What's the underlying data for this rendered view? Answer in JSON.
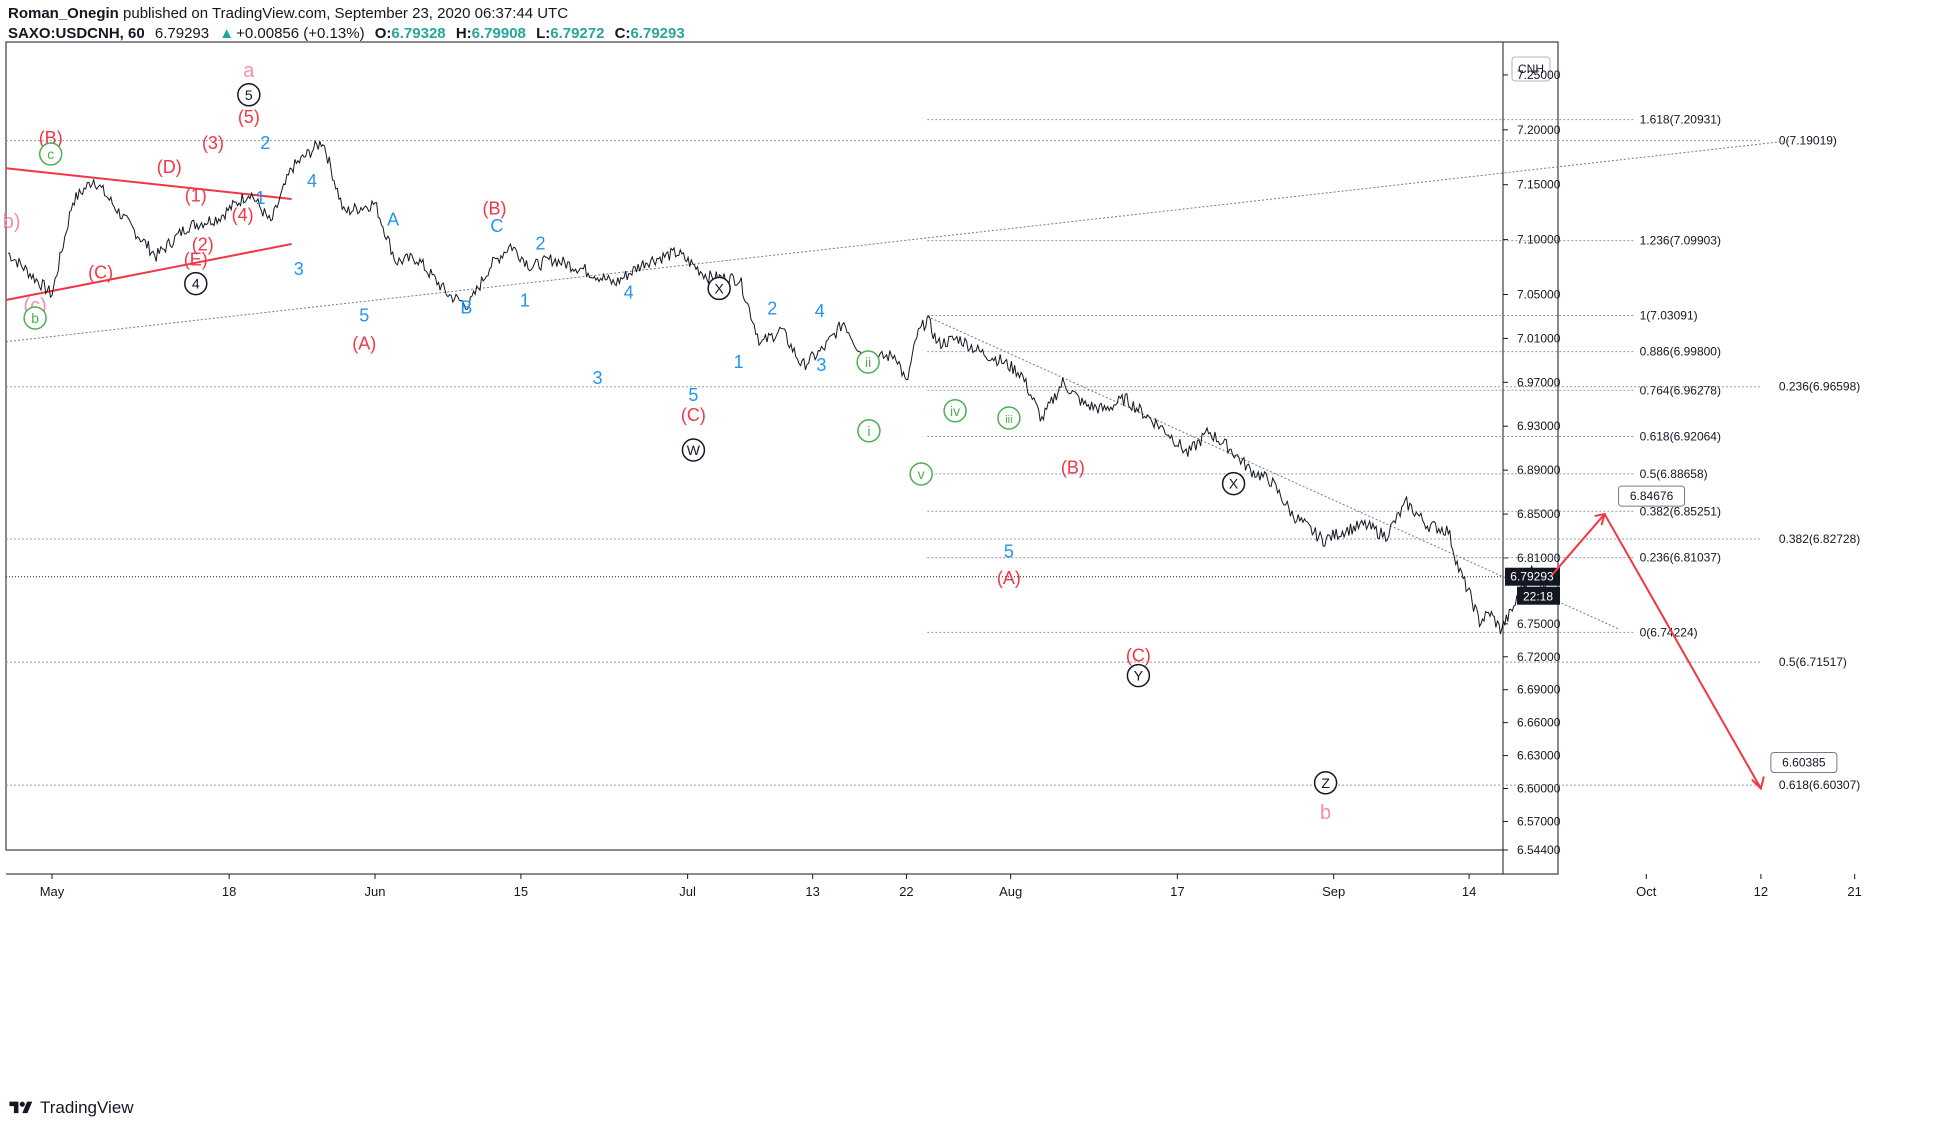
{
  "header": {
    "author": "Roman_Onegin",
    "published_text": "published on TradingView.com, September 23, 2020 06:37:44 UTC",
    "symbol": "SAXO:USDCNH, 60",
    "last": "6.79293",
    "change_arrow": "▲",
    "change": "+0.00856 (+0.13%)",
    "o_label": "O:",
    "o_value": "6.79328",
    "h_label": "H:",
    "h_value": "6.79908",
    "l_label": "L:",
    "l_value": "6.79272",
    "c_label": "C:",
    "c_value": "6.79293"
  },
  "footer": {
    "brand": "TradingView"
  },
  "colors": {
    "red": "#f23645",
    "blue": "#2196f3",
    "green": "#4caf50",
    "pink": "#f48fb1",
    "black": "#131722",
    "grid": "#9598a1",
    "green_value": "#26a69a"
  },
  "chart_data": {
    "type": "line",
    "title": "SAXO:USDCNH, 60",
    "currency_label": "CNH",
    "y_ticks": [
      "7.25000",
      "7.20000",
      "7.15000",
      "7.10000",
      "7.05000",
      "7.01000",
      "6.97000",
      "6.93000",
      "6.89000",
      "6.85000",
      "6.81000",
      "6.75000",
      "6.72000",
      "6.69000",
      "6.66000",
      "6.63000",
      "6.60000",
      "6.57000",
      "6.54400"
    ],
    "ylim": [
      6.544,
      7.28
    ],
    "x_ticks": [
      "May",
      "18",
      "Jun",
      "15",
      "Jul",
      "13",
      "22",
      "Aug",
      "17",
      "Sep",
      "14",
      "Oct",
      "12",
      "21"
    ],
    "current_price": "6.79293",
    "countdown": "22:18",
    "price_path": [
      [
        "Apr 28",
        7.088
      ],
      [
        "May 1",
        7.05
      ],
      [
        "May 3",
        7.135
      ],
      [
        "May 5",
        7.155
      ],
      [
        "May 8",
        7.118
      ],
      [
        "May 11",
        7.085
      ],
      [
        "May 14",
        7.112
      ],
      [
        "May 17",
        7.12
      ],
      [
        "May 20",
        7.143
      ],
      [
        "May 22",
        7.115
      ],
      [
        "May 24",
        7.165
      ],
      [
        "May 27",
        7.19
      ],
      [
        "May 29",
        7.125
      ],
      [
        "Jun 1",
        7.133
      ],
      [
        "Jun 3",
        7.08
      ],
      [
        "Jun 5",
        7.083
      ],
      [
        "Jun 8",
        7.05
      ],
      [
        "Jun 10",
        7.04
      ],
      [
        "Jun 12",
        7.075
      ],
      [
        "Jun 14",
        7.095
      ],
      [
        "Jun 16",
        7.075
      ],
      [
        "Jun 18",
        7.082
      ],
      [
        "Jun 21",
        7.073
      ],
      [
        "Jun 24",
        7.06
      ],
      [
        "Jun 27",
        7.08
      ],
      [
        "Jun 30",
        7.088
      ],
      [
        "Jul 3",
        7.066
      ],
      [
        "Jul 6",
        7.064
      ],
      [
        "Jul 8",
        7.005
      ],
      [
        "Jul 10",
        7.018
      ],
      [
        "Jul 12",
        6.985
      ],
      [
        "Jul 14",
        7.0
      ],
      [
        "Jul 16",
        7.025
      ],
      [
        "Jul 18",
        6.99
      ],
      [
        "Jul 21",
        6.995
      ],
      [
        "Jul 22",
        6.968
      ],
      [
        "Jul 23",
        7.012
      ],
      [
        "Jul 24",
        7.028
      ],
      [
        "Jul 25",
        7.005
      ],
      [
        "Jul 27",
        7.01
      ],
      [
        "Jul 29",
        6.998
      ],
      [
        "Jul 31",
        6.99
      ],
      [
        "Aug 2",
        6.978
      ],
      [
        "Aug 4",
        6.936
      ],
      [
        "Aug 6",
        6.97
      ],
      [
        "Aug 8",
        6.95
      ],
      [
        "Aug 10",
        6.945
      ],
      [
        "Aug 12",
        6.955
      ],
      [
        "Aug 14",
        6.94
      ],
      [
        "Aug 16",
        6.925
      ],
      [
        "Aug 18",
        6.905
      ],
      [
        "Aug 20",
        6.925
      ],
      [
        "Aug 22",
        6.91
      ],
      [
        "Aug 24",
        6.89
      ],
      [
        "Aug 26",
        6.88
      ],
      [
        "Aug 28",
        6.85
      ],
      [
        "Aug 31",
        6.826
      ],
      [
        "Sep 2",
        6.835
      ],
      [
        "Sep 4",
        6.84
      ],
      [
        "Sep 6",
        6.83
      ],
      [
        "Sep 8",
        6.86
      ],
      [
        "Sep 10",
        6.84
      ],
      [
        "Sep 12",
        6.835
      ],
      [
        "Sep 13",
        6.8
      ],
      [
        "Sep 14",
        6.778
      ],
      [
        "Sep 15",
        6.752
      ],
      [
        "Sep 16",
        6.76
      ],
      [
        "Sep 17",
        6.745
      ],
      [
        "Sep 18",
        6.76
      ],
      [
        "Sep 19",
        6.78
      ],
      [
        "Sep 20",
        6.8
      ],
      [
        "Sep 21",
        6.785
      ],
      [
        "Sep 22",
        6.793
      ]
    ],
    "fib_levels_right": [
      {
        "label": "1.618(7.20931)",
        "value": 7.20931
      },
      {
        "label": "1.236(7.09903)",
        "value": 7.09903
      },
      {
        "label": "1(7.03091)",
        "value": 7.03091
      },
      {
        "label": "0.886(6.99800)",
        "value": 6.998
      },
      {
        "label": "0.764(6.96278)",
        "value": 6.96278
      },
      {
        "label": "0.618(6.92064)",
        "value": 6.92064
      },
      {
        "label": "0.5(6.88658)",
        "value": 6.88658
      },
      {
        "label": "0.382(6.85251)",
        "value": 6.85251
      },
      {
        "label": "0.236(6.81037)",
        "value": 6.81037
      },
      {
        "label": "0(6.74224)",
        "value": 6.74224
      }
    ],
    "fib_levels_far": [
      {
        "label": "0(7.19019)",
        "value": 7.19019
      },
      {
        "label": "0.236(6.96598)",
        "value": 6.96598
      },
      {
        "label": "0.382(6.82728)",
        "value": 6.82728
      },
      {
        "label": "0.5(6.71517)",
        "value": 6.71517
      },
      {
        "label": "0.618(6.60307)",
        "value": 6.60307
      }
    ],
    "price_callouts": [
      {
        "label": "6.84676",
        "value": 6.84676
      },
      {
        "label": "6.60385",
        "value": 6.60385
      }
    ],
    "wave_labels": [
      {
        "text": "a",
        "color": "pink"
      },
      {
        "text": "5",
        "color": "black",
        "circled": true
      },
      {
        "text": "(5)",
        "color": "red"
      },
      {
        "text": "(B)",
        "color": "red"
      },
      {
        "text": "c",
        "color": "green",
        "circled": true
      },
      {
        "text": "(D)",
        "color": "red"
      },
      {
        "text": "(3)",
        "color": "red"
      },
      {
        "text": "(1)",
        "color": "red"
      },
      {
        "text": "(4)",
        "color": "red"
      },
      {
        "text": "(2)",
        "color": "red"
      },
      {
        "text": "(E)",
        "color": "red"
      },
      {
        "text": "4",
        "color": "black",
        "circled": true
      },
      {
        "text": "(C)",
        "color": "red"
      },
      {
        "text": "(c)",
        "color": "pink"
      },
      {
        "text": "b",
        "color": "green",
        "circled": true
      },
      {
        "text": "b)",
        "color": "pink"
      },
      {
        "text": "2",
        "color": "blue"
      },
      {
        "text": "1",
        "color": "blue"
      },
      {
        "text": "4",
        "color": "blue"
      },
      {
        "text": "3",
        "color": "blue"
      },
      {
        "text": "5",
        "color": "blue"
      },
      {
        "text": "(A)",
        "color": "red"
      },
      {
        "text": "A",
        "color": "blue"
      },
      {
        "text": "B",
        "color": "blue"
      },
      {
        "text": "(B)",
        "color": "red"
      },
      {
        "text": "C",
        "color": "blue"
      },
      {
        "text": "2",
        "color": "blue"
      },
      {
        "text": "1",
        "color": "blue"
      },
      {
        "text": "4",
        "color": "blue"
      },
      {
        "text": "3",
        "color": "blue"
      },
      {
        "text": "5",
        "color": "blue"
      },
      {
        "text": "(C)",
        "color": "red"
      },
      {
        "text": "W",
        "color": "black",
        "circled": true
      },
      {
        "text": "X",
        "color": "black",
        "circled": true
      },
      {
        "text": "2",
        "color": "blue"
      },
      {
        "text": "1",
        "color": "blue"
      },
      {
        "text": "4",
        "color": "blue"
      },
      {
        "text": "3",
        "color": "blue"
      },
      {
        "text": "ii",
        "color": "green",
        "circled": true
      },
      {
        "text": "i",
        "color": "green",
        "circled": true
      },
      {
        "text": "iv",
        "color": "green",
        "circled": true
      },
      {
        "text": "iii",
        "color": "green",
        "circled": true
      },
      {
        "text": "v",
        "color": "green",
        "circled": true
      },
      {
        "text": "5",
        "color": "blue"
      },
      {
        "text": "(A)",
        "color": "red"
      },
      {
        "text": "(B)",
        "color": "red"
      },
      {
        "text": "(C)",
        "color": "red"
      },
      {
        "text": "Y",
        "color": "black",
        "circled": true
      },
      {
        "text": "X",
        "color": "black",
        "circled": true
      },
      {
        "text": "Z",
        "color": "black",
        "circled": true
      },
      {
        "text": "b",
        "color": "pink"
      }
    ],
    "projection": [
      [
        "Sep 22",
        6.795
      ],
      [
        "Sep 27",
        6.85
      ],
      [
        "Oct 12",
        6.6
      ]
    ]
  }
}
